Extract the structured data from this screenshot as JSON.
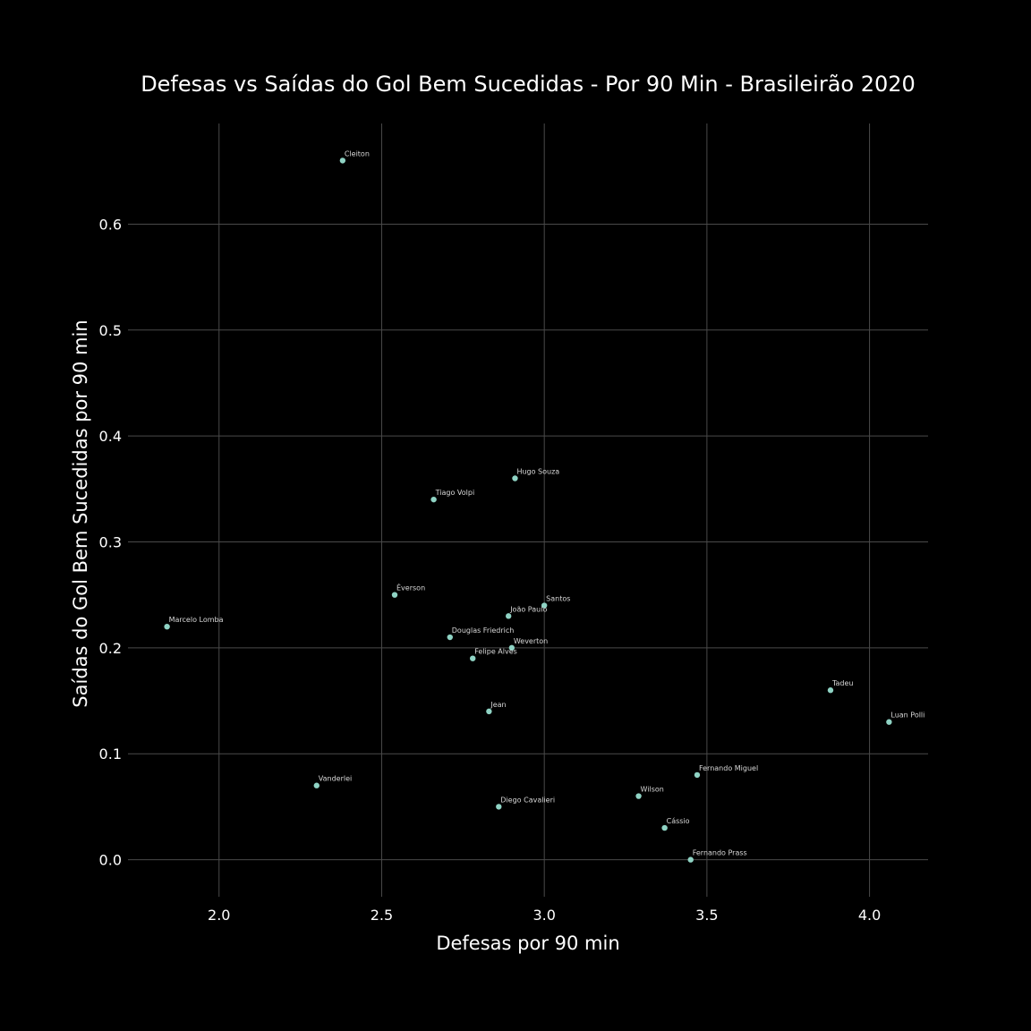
{
  "chart_data": {
    "type": "scatter",
    "title": "Defesas vs Saídas do Gol Bem Sucedidas - Por 90 Min - Brasileirão 2020",
    "xlabel": "Defesas por 90 min",
    "ylabel": "Saídas do Gol Bem Sucedidas por 90 min",
    "xlim": [
      1.72,
      4.18
    ],
    "ylim": [
      -0.035,
      0.695
    ],
    "xticks": [
      "2.0",
      "2.5",
      "3.0",
      "3.5",
      "4.0"
    ],
    "yticks": [
      "0.0",
      "0.1",
      "0.2",
      "0.3",
      "0.4",
      "0.5",
      "0.6"
    ],
    "grid": true,
    "colors": {
      "background": "#000000",
      "point": "#8fd3c4",
      "grid": "#4a4a4a",
      "text": "#ffffff"
    },
    "points": [
      {
        "label": "Cleiton",
        "x": 2.38,
        "y": 0.66
      },
      {
        "label": "Hugo Souza",
        "x": 2.91,
        "y": 0.36
      },
      {
        "label": "Tiago Volpi",
        "x": 2.66,
        "y": 0.34
      },
      {
        "label": "Éverson",
        "x": 2.54,
        "y": 0.25
      },
      {
        "label": "Santos",
        "x": 3.0,
        "y": 0.24
      },
      {
        "label": "João Paulo",
        "x": 2.89,
        "y": 0.23
      },
      {
        "label": "Marcelo Lomba",
        "x": 1.84,
        "y": 0.22
      },
      {
        "label": "Douglas Friedrich",
        "x": 2.71,
        "y": 0.21
      },
      {
        "label": "Weverton",
        "x": 2.9,
        "y": 0.2
      },
      {
        "label": "Felipe Alves",
        "x": 2.78,
        "y": 0.19
      },
      {
        "label": "Tadeu",
        "x": 3.88,
        "y": 0.16
      },
      {
        "label": "Jean",
        "x": 2.83,
        "y": 0.14
      },
      {
        "label": "Luan Polli",
        "x": 4.06,
        "y": 0.13
      },
      {
        "label": "Fernando Miguel",
        "x": 3.47,
        "y": 0.08
      },
      {
        "label": "Vanderlei",
        "x": 2.3,
        "y": 0.07
      },
      {
        "label": "Wilson",
        "x": 3.29,
        "y": 0.06
      },
      {
        "label": "Diego Cavalieri",
        "x": 2.86,
        "y": 0.05
      },
      {
        "label": "Cássio",
        "x": 3.37,
        "y": 0.03
      },
      {
        "label": "Fernando Prass",
        "x": 3.45,
        "y": 0.0
      }
    ]
  }
}
